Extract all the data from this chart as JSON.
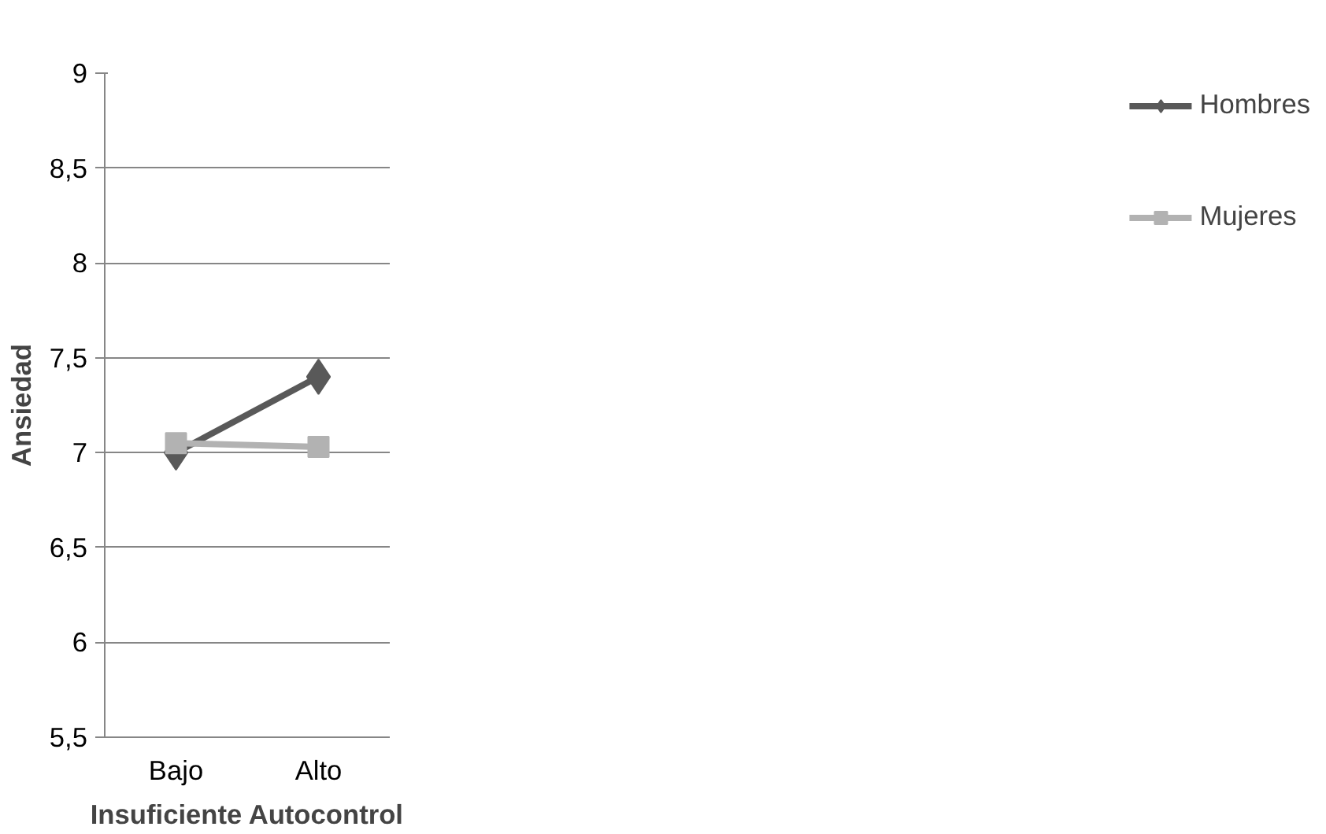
{
  "chart_data": {
    "type": "line",
    "xlabel": "Insuficiente Autocontrol",
    "ylabel": "Ansiedad",
    "categories": [
      "Bajo",
      "Alto"
    ],
    "series": [
      {
        "name": "Hombres",
        "color": "#595959",
        "marker": "diamond",
        "values": [
          7.0,
          7.4
        ]
      },
      {
        "name": "Mujeres",
        "color": "#b2b2b2",
        "marker": "square",
        "values": [
          7.05,
          7.03
        ]
      }
    ],
    "ylim": [
      5.5,
      9
    ],
    "yticks": [
      {
        "value": 5.5,
        "label": "5,5"
      },
      6,
      {
        "value": 6.5,
        "label": "6,5"
      },
      7,
      {
        "value": 7.5,
        "label": "7,5"
      },
      8,
      {
        "value": 8.5,
        "label": "8,5"
      },
      9
    ],
    "grid": "y",
    "legend": "right",
    "line_style": "solid"
  }
}
